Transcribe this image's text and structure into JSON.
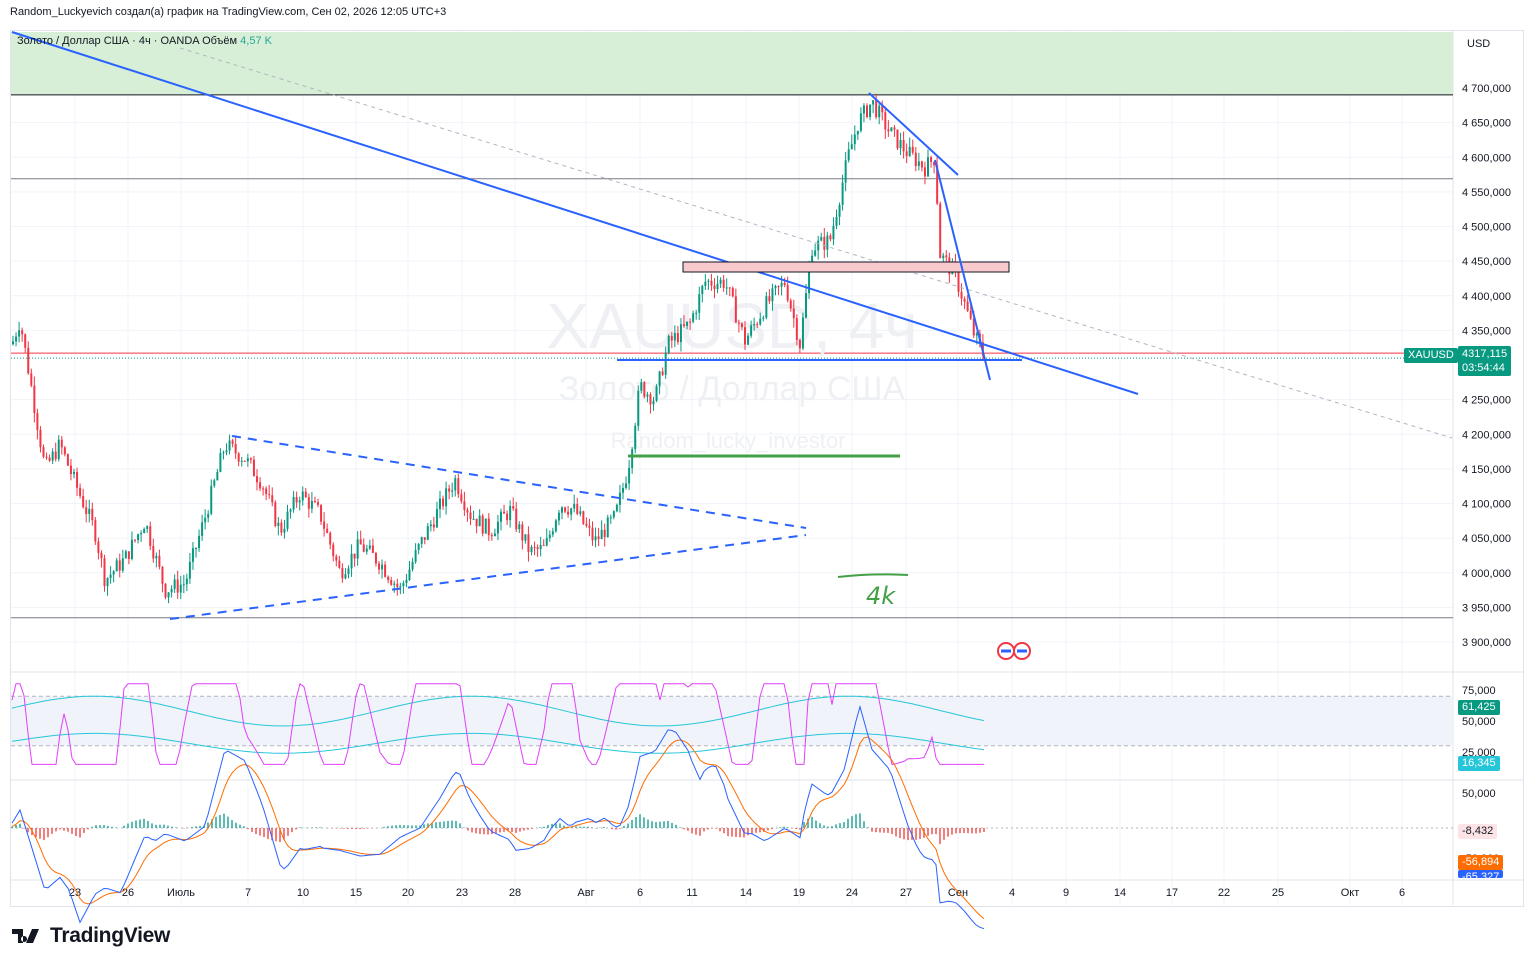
{
  "header": {
    "attribution": "Random_Luckyevich создал(а) график на TradingView.com, Сен 02, 2026 12:05 UTC+3"
  },
  "legend": {
    "symbol_text": "Золото / Доллар США · 4ч · OANDA",
    "volume_label": "Объём",
    "volume_value": "4,57 K"
  },
  "watermark": {
    "ticker": "XAUUSD, 4ч",
    "name": "Золото / Доллар США",
    "author": "Random_lucky_investor"
  },
  "price_axis": {
    "currency": "USD",
    "ticks": [
      "4 700,000",
      "4 650,000",
      "4 600,000",
      "4 550,000",
      "4 500,000",
      "4 450,000",
      "4 400,000",
      "4 350,000",
      "4 250,000",
      "4 200,000",
      "4 150,000",
      "4 100,000",
      "4 050,000",
      "4 000,000",
      "3 950,000",
      "3 900,000"
    ],
    "tick_values": [
      4700,
      4650,
      4600,
      4550,
      4500,
      4450,
      4400,
      4350,
      4250,
      4200,
      4150,
      4100,
      4050,
      4000,
      3950,
      3900
    ]
  },
  "price_tag": {
    "symbol": "XAUUSD",
    "price": "4317,115",
    "countdown": "03:54:44",
    "color": "#089981"
  },
  "date_axis": {
    "labels": [
      "23",
      "26",
      "Июль",
      "7",
      "10",
      "15",
      "20",
      "23",
      "28",
      "Авг",
      "6",
      "11",
      "14",
      "19",
      "24",
      "27",
      "Сен",
      "4",
      "9",
      "14",
      "17",
      "22",
      "25",
      "Окт",
      "6"
    ]
  },
  "annotation_text": "4k",
  "rsi_panel": {
    "ticks": [
      "75,000",
      "50,000",
      "25,000"
    ],
    "value_tag": "61,425",
    "value_tag_2": "16,345",
    "colors": {
      "rsi": "#e040fb",
      "band": "#26c6da",
      "tag": "#089981",
      "tag2": "#26c6da"
    }
  },
  "macd_panel": {
    "ticks": [
      "50,000",
      "0,000",
      "-50,000"
    ],
    "tag_hist": "-8,432",
    "tag_signal": "-56,894",
    "tag_macd": "-65,327",
    "colors": {
      "macd": "#2962ff",
      "signal": "#ff6d00",
      "hist_pos": "#26a69a",
      "hist_neg": "#ef5350"
    }
  },
  "chart_data": {
    "type": "candlestick",
    "timeframe": "4h",
    "series": [
      {
        "name": "XAUUSD",
        "close_path_x": [
          "Июнь 20",
          "Июнь 23",
          "Июнь 26",
          "Июль 1",
          "Июль 7",
          "Июль 10",
          "Июль 15",
          "Июль 20",
          "Июль 23",
          "Июль 28",
          "Авг 1",
          "Авг 6",
          "Авг 11",
          "Авг 14",
          "Авг 19",
          "Авг 24",
          "Авг 27",
          "Сен 1",
          "Сен 2"
        ],
        "close_path_y": [
          4330,
          4130,
          4020,
          3995,
          4180,
          4100,
          4010,
          3985,
          4120,
          4040,
          4060,
          4260,
          4370,
          4330,
          4450,
          4670,
          4610,
          4430,
          4317
        ]
      }
    ],
    "ylim": [
      3880,
      4730
    ],
    "levels": {
      "resistance_zone_low": 4690,
      "horizontal_1": 4569,
      "horizontal_2": 3935,
      "current_price": 4317.115
    },
    "colors": {
      "up": "#089981",
      "down": "#f23645",
      "trendline": "#2962ff",
      "zone": "#d6efd6",
      "supply_box": "#f8c9cd",
      "target_line": "#43a047"
    }
  }
}
